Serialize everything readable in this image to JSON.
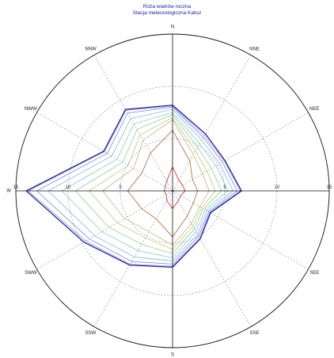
{
  "chart_data": {
    "type": "radar",
    "title": "Róża wiatrów roczna",
    "subtitle": "Stacja meteorologiczna Kalisz",
    "directions": [
      "N",
      "NNE",
      "NEE",
      "E",
      "SEE",
      "SSE",
      "S",
      "SSW",
      "SWW",
      "W",
      "NWW",
      "NNW"
    ],
    "rlim": [
      0,
      15
    ],
    "r_ticks": [
      {
        "value": 5,
        "label": "5"
      },
      {
        "value": 10,
        "label": "10"
      },
      {
        "value": 15,
        "label": "15"
      }
    ],
    "grid": true,
    "legend": "none",
    "series": [
      {
        "color": "#cc2222",
        "values": [
          2.3,
          1.2,
          1.1,
          1.2,
          0.9,
          1.1,
          1.7,
          1.1,
          0.7,
          0.8,
          0.8,
          1.1
        ]
      },
      {
        "color": "#aa6633",
        "values": [
          5.8,
          3.3,
          2.2,
          2.4,
          2.3,
          2.8,
          4.4,
          3.1,
          3.4,
          4.3,
          3.4,
          4.2
        ]
      },
      {
        "color": "#c9b27a",
        "values": [
          6.8,
          4.0,
          3.3,
          3.5,
          3.0,
          3.6,
          5.2,
          4.5,
          5.3,
          6.7,
          4.3,
          5.6
        ]
      },
      {
        "color": "#b9c97a",
        "values": [
          7.0,
          4.4,
          3.8,
          4.1,
          3.2,
          3.9,
          5.6,
          5.2,
          6.1,
          8.0,
          4.9,
          6.2
        ]
      },
      {
        "color": "#8fd08f",
        "values": [
          7.3,
          4.8,
          4.3,
          4.7,
          3.4,
          4.2,
          6.0,
          5.9,
          7.0,
          9.3,
          5.5,
          6.8
        ]
      },
      {
        "color": "#7fd1c8",
        "values": [
          7.5,
          5.2,
          4.8,
          5.3,
          3.6,
          4.5,
          6.4,
          6.6,
          7.8,
          10.6,
          6.1,
          7.4
        ]
      },
      {
        "color": "#8ab0ee",
        "values": [
          7.8,
          5.6,
          5.2,
          5.8,
          3.8,
          4.8,
          6.7,
          7.3,
          8.6,
          11.9,
          6.7,
          8.0
        ]
      },
      {
        "color": "#6f8ee8",
        "values": [
          8.0,
          5.9,
          5.5,
          6.2,
          4.0,
          5.0,
          7.0,
          7.8,
          9.2,
          13.0,
          7.2,
          8.6
        ]
      },
      {
        "color": "#b389e0",
        "values": [
          8.1,
          6.1,
          5.7,
          6.5,
          4.1,
          5.2,
          7.2,
          8.1,
          9.6,
          13.8,
          7.5,
          8.9
        ]
      },
      {
        "color": "#1a2aa0",
        "values": [
          8.2,
          6.3,
          5.8,
          6.6,
          4.2,
          5.3,
          7.3,
          8.2,
          9.8,
          14.0,
          7.6,
          9.0
        ]
      }
    ]
  }
}
